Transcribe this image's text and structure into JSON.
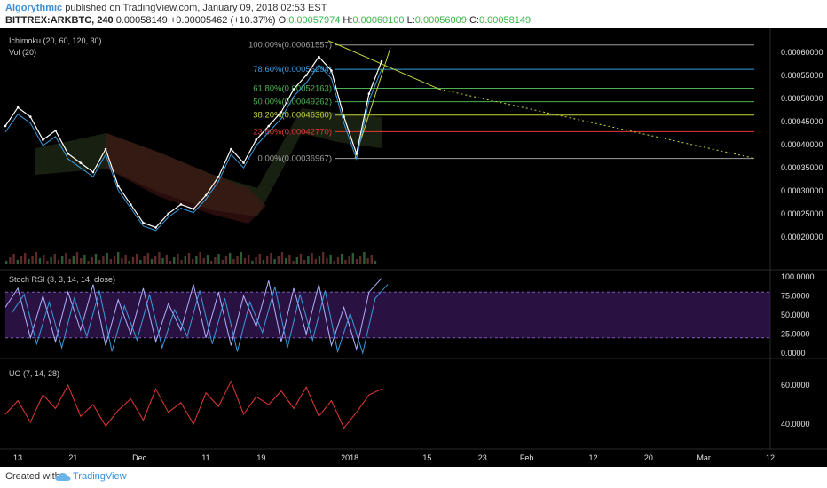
{
  "header": {
    "author": "Algorythmic",
    "published": "published on TradingView.com, January 09, 2018 02:53 EST",
    "symbol": "BITTREX:ARKBTC, 240",
    "price": "0.00058149",
    "change": "+0.00005462 (+10.37%)",
    "open_label": "O:",
    "open": "0.00057974",
    "high_label": "H:",
    "high": "0.00060100",
    "low_label": "L:",
    "low": "0.00056009",
    "close_label": "C:",
    "close": "0.00058149"
  },
  "footer": {
    "created": "Created with",
    "brand": "TradingView"
  },
  "colors": {
    "background": "#000000",
    "fib_100": "#9e9e9e",
    "fib_786": "#3a9bdc",
    "fib_618": "#4caf50",
    "fib_50": "#4caf50",
    "fib_382": "#c6d639",
    "fib_236": "#e53935",
    "fib_0": "#9e9e9e",
    "stoch_band": "#3a1a5c",
    "uo_line": "#e53935"
  },
  "chart_data": [
    {
      "type": "line",
      "pane": "price",
      "indicators": [
        "Ichimoku (20, 60, 120, 30)",
        "Vol (20)"
      ],
      "ylim": [
        0.00014,
        0.00064
      ],
      "y_ticks": [
        "0.00060000",
        "0.00055000",
        "0.00050000",
        "0.00045000",
        "0.00040000",
        "0.00035000",
        "0.00030000",
        "0.00025000",
        "0.00020000"
      ],
      "y_tick_values": [
        0.0006,
        0.00055,
        0.0005,
        0.00045,
        0.0004,
        0.00035,
        0.0003,
        0.00025,
        0.0002
      ],
      "fib_levels": [
        {
          "label": "100.00%(0.00061557)",
          "value": 0.00061557,
          "color_key": "fib_100"
        },
        {
          "label": "78.60%(0.00056294)",
          "value": 0.00056294,
          "color_key": "fib_786"
        },
        {
          "label": "61.80%(0.00052163)",
          "value": 0.00052163,
          "color_key": "fib_618"
        },
        {
          "label": "50.00%(0.00049262)",
          "value": 0.00049262,
          "color_key": "fib_50"
        },
        {
          "label": "38.20%(0.00046360)",
          "value": 0.0004636,
          "color_key": "fib_382"
        },
        {
          "label": "23.60%(0.00042770)",
          "value": 0.0004277,
          "color_key": "fib_236"
        },
        {
          "label": "0.00%(0.00036967)",
          "value": 0.00036967,
          "color_key": "fib_0"
        }
      ],
      "x": [
        0,
        2,
        4,
        6,
        8,
        10,
        12,
        14,
        16,
        18,
        20,
        22,
        24,
        26,
        28,
        30,
        32,
        34,
        36,
        38,
        40,
        42,
        44,
        46,
        48,
        50,
        52,
        54,
        56,
        58,
        60
      ],
      "values": [
        0.00044,
        0.00048,
        0.00046,
        0.00041,
        0.00043,
        0.00038,
        0.00036,
        0.00034,
        0.00039,
        0.00031,
        0.00027,
        0.00023,
        0.00022,
        0.00025,
        0.00027,
        0.00026,
        0.00029,
        0.00033,
        0.00039,
        0.00036,
        0.00041,
        0.00044,
        0.00047,
        0.00052,
        0.00055,
        0.00059,
        0.00056,
        0.00046,
        0.00038,
        0.00051,
        0.00058
      ]
    },
    {
      "type": "line",
      "pane": "stoch_rsi",
      "title": "Stoch RSI (3, 3, 14, 14, close)",
      "ylim": [
        0,
        100
      ],
      "y_ticks": [
        "100.0000",
        "75.0000",
        "50.0000",
        "25.0000",
        "0.0000"
      ],
      "y_tick_values": [
        100,
        75,
        50,
        25,
        0
      ],
      "band": [
        20,
        80
      ],
      "x": [
        0,
        2,
        4,
        6,
        8,
        10,
        12,
        14,
        16,
        18,
        20,
        22,
        24,
        26,
        28,
        30,
        32,
        34,
        36,
        38,
        40,
        42,
        44,
        46,
        48,
        50,
        52,
        54,
        56,
        58,
        60
      ],
      "values": [
        60,
        85,
        20,
        75,
        15,
        80,
        30,
        90,
        10,
        70,
        25,
        85,
        15,
        65,
        30,
        90,
        20,
        80,
        10,
        75,
        35,
        95,
        15,
        85,
        25,
        90,
        10,
        60,
        5,
        80,
        98
      ]
    },
    {
      "type": "line",
      "pane": "uo",
      "title": "UO (7, 14, 28)",
      "ylim": [
        30,
        70
      ],
      "y_ticks": [
        "60.0000",
        "40.0000"
      ],
      "y_tick_values": [
        60,
        40
      ],
      "x": [
        0,
        2,
        4,
        6,
        8,
        10,
        12,
        14,
        16,
        18,
        20,
        22,
        24,
        26,
        28,
        30,
        32,
        34,
        36,
        38,
        40,
        42,
        44,
        46,
        48,
        50,
        52,
        54,
        56,
        58,
        60
      ],
      "values": [
        45,
        52,
        41,
        55,
        48,
        60,
        44,
        50,
        39,
        47,
        53,
        42,
        58,
        46,
        51,
        40,
        56,
        49,
        62,
        45,
        54,
        50,
        57,
        48,
        59,
        44,
        52,
        38,
        46,
        55,
        58
      ]
    }
  ],
  "x_axis": {
    "ticks": [
      "13",
      "21",
      "Dec",
      "11",
      "19",
      "2018",
      "15",
      "23",
      "Feb",
      "12",
      "20",
      "Mar",
      "12"
    ],
    "tick_x": [
      0,
      5,
      11,
      17,
      22,
      30,
      37,
      42,
      46,
      52,
      57,
      62,
      68
    ]
  }
}
